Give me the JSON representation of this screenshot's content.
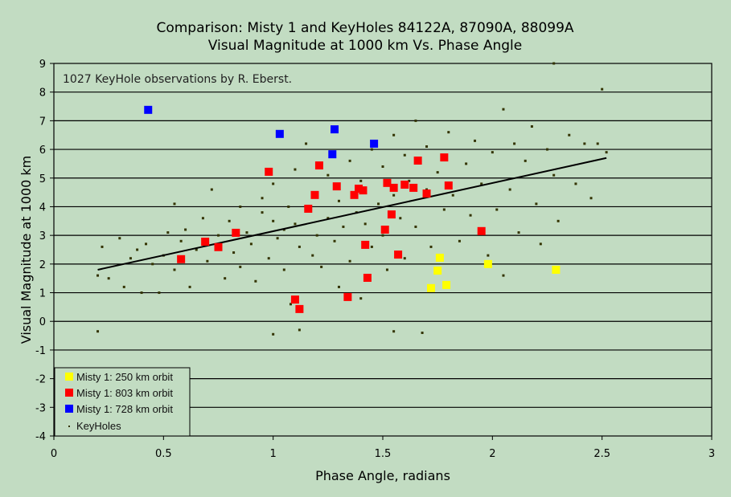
{
  "chart_data": {
    "type": "scatter",
    "title": [
      "Comparison: Misty 1 and KeyHoles 84122A, 87090A, 88099A",
      "Visual Magnitude at 1000 km Vs. Phase Angle"
    ],
    "xlabel": "Phase Angle, radians",
    "ylabel": "Visual Magnitude at 1000 km",
    "annotation": "1027 KeyHole observations by R. Eberst.",
    "xlim": [
      0,
      3
    ],
    "ylim": [
      -4,
      9
    ],
    "xticks": [
      0,
      0.5,
      1,
      1.5,
      2,
      2.5,
      3
    ],
    "xtick_labels": [
      "0",
      "0.5",
      "1",
      "1.5",
      "2",
      "2.5",
      "3"
    ],
    "yticks": [
      -4,
      -3,
      -2,
      -1,
      0,
      1,
      2,
      3,
      4,
      5,
      6,
      7,
      8,
      9
    ],
    "ytick_labels": [
      "-4",
      "-3",
      "-2",
      "-1",
      "0",
      "1",
      "2",
      "3",
      "4",
      "5",
      "6",
      "7",
      "8",
      "9"
    ],
    "grid": "horizontal",
    "legend_position": "bottom-left",
    "series": [
      {
        "name": "Misty 1: 250 km orbit",
        "color": "#ffff00",
        "marker": "square",
        "points": [
          [
            1.76,
            2.22
          ],
          [
            1.75,
            1.77
          ],
          [
            1.72,
            1.16
          ],
          [
            1.79,
            1.27
          ],
          [
            1.98,
            2.0
          ],
          [
            2.29,
            1.8
          ]
        ]
      },
      {
        "name": "Misty 1: 803 km orbit",
        "color": "#ff0000",
        "marker": "square",
        "points": [
          [
            0.58,
            2.17
          ],
          [
            0.69,
            2.78
          ],
          [
            0.75,
            2.59
          ],
          [
            0.83,
            3.09
          ],
          [
            0.98,
            5.22
          ],
          [
            1.16,
            3.93
          ],
          [
            1.19,
            4.41
          ],
          [
            1.21,
            5.44
          ],
          [
            1.29,
            4.71
          ],
          [
            1.37,
            4.41
          ],
          [
            1.39,
            4.63
          ],
          [
            1.41,
            4.57
          ],
          [
            1.42,
            2.67
          ],
          [
            1.43,
            1.52
          ],
          [
            1.34,
            0.85
          ],
          [
            1.1,
            0.76
          ],
          [
            1.12,
            0.43
          ],
          [
            1.52,
            4.83
          ],
          [
            1.55,
            4.66
          ],
          [
            1.6,
            4.77
          ],
          [
            1.64,
            4.66
          ],
          [
            1.7,
            4.46
          ],
          [
            1.66,
            5.61
          ],
          [
            1.78,
            5.72
          ],
          [
            1.8,
            4.74
          ],
          [
            1.54,
            3.73
          ],
          [
            1.51,
            3.2
          ],
          [
            1.57,
            2.33
          ],
          [
            1.95,
            3.15
          ]
        ]
      },
      {
        "name": "Misty 1: 728 km orbit",
        "color": "#0000ff",
        "marker": "square",
        "points": [
          [
            0.43,
            7.38
          ],
          [
            1.03,
            6.54
          ],
          [
            1.28,
            6.7
          ],
          [
            1.27,
            5.83
          ],
          [
            1.46,
            6.2
          ]
        ]
      },
      {
        "name": "KeyHoles",
        "color": "#333300",
        "marker": "dot",
        "points": [
          [
            0.2,
            -0.35
          ],
          [
            0.2,
            1.6
          ],
          [
            0.22,
            2.6
          ],
          [
            0.25,
            1.5
          ],
          [
            0.3,
            2.9
          ],
          [
            0.32,
            1.2
          ],
          [
            0.35,
            2.2
          ],
          [
            0.38,
            2.5
          ],
          [
            0.4,
            1.0
          ],
          [
            0.42,
            2.7
          ],
          [
            0.45,
            2.0
          ],
          [
            0.48,
            1.0
          ],
          [
            0.5,
            2.3
          ],
          [
            0.52,
            3.1
          ],
          [
            0.55,
            4.1
          ],
          [
            0.55,
            1.8
          ],
          [
            0.58,
            2.8
          ],
          [
            0.6,
            3.2
          ],
          [
            0.62,
            1.2
          ],
          [
            0.65,
            2.5
          ],
          [
            0.68,
            3.6
          ],
          [
            0.7,
            2.1
          ],
          [
            0.72,
            4.6
          ],
          [
            0.75,
            3.0
          ],
          [
            0.78,
            1.5
          ],
          [
            0.8,
            3.5
          ],
          [
            0.82,
            2.4
          ],
          [
            0.85,
            4.0
          ],
          [
            0.85,
            1.9
          ],
          [
            0.88,
            3.1
          ],
          [
            0.9,
            2.7
          ],
          [
            0.92,
            1.4
          ],
          [
            0.95,
            3.8
          ],
          [
            0.95,
            4.3
          ],
          [
            0.98,
            2.2
          ],
          [
            1.0,
            3.5
          ],
          [
            1.0,
            4.8
          ],
          [
            1.0,
            -0.45
          ],
          [
            1.02,
            2.9
          ],
          [
            1.05,
            3.2
          ],
          [
            1.05,
            1.8
          ],
          [
            1.07,
            4.0
          ],
          [
            1.08,
            0.6
          ],
          [
            1.1,
            3.4
          ],
          [
            1.1,
            5.3
          ],
          [
            1.12,
            2.6
          ],
          [
            1.12,
            -0.3
          ],
          [
            1.15,
            3.9
          ],
          [
            1.15,
            6.2
          ],
          [
            1.18,
            2.3
          ],
          [
            1.2,
            4.5
          ],
          [
            1.2,
            3.0
          ],
          [
            1.22,
            1.9
          ],
          [
            1.25,
            3.6
          ],
          [
            1.25,
            5.1
          ],
          [
            1.28,
            2.8
          ],
          [
            1.3,
            4.2
          ],
          [
            1.3,
            1.2
          ],
          [
            1.32,
            3.3
          ],
          [
            1.35,
            5.6
          ],
          [
            1.35,
            2.1
          ],
          [
            1.38,
            3.8
          ],
          [
            1.4,
            4.9
          ],
          [
            1.4,
            0.8
          ],
          [
            1.42,
            3.4
          ],
          [
            1.45,
            6.0
          ],
          [
            1.45,
            2.6
          ],
          [
            1.48,
            4.1
          ],
          [
            1.5,
            5.4
          ],
          [
            1.5,
            3.0
          ],
          [
            1.52,
            1.8
          ],
          [
            1.55,
            4.4
          ],
          [
            1.55,
            6.5
          ],
          [
            1.55,
            -0.35
          ],
          [
            1.58,
            3.6
          ],
          [
            1.6,
            5.8
          ],
          [
            1.6,
            2.2
          ],
          [
            1.62,
            4.9
          ],
          [
            1.65,
            7.0
          ],
          [
            1.65,
            3.3
          ],
          [
            1.68,
            -0.4
          ],
          [
            1.7,
            4.6
          ],
          [
            1.7,
            6.1
          ],
          [
            1.72,
            2.6
          ],
          [
            1.75,
            5.2
          ],
          [
            1.78,
            3.9
          ],
          [
            1.8,
            6.6
          ],
          [
            1.82,
            4.4
          ],
          [
            1.85,
            2.8
          ],
          [
            1.88,
            5.5
          ],
          [
            1.9,
            3.7
          ],
          [
            1.92,
            6.3
          ],
          [
            1.95,
            4.8
          ],
          [
            1.98,
            2.3
          ],
          [
            2.0,
            5.9
          ],
          [
            2.02,
            3.9
          ],
          [
            2.05,
            1.6
          ],
          [
            2.05,
            7.4
          ],
          [
            2.08,
            4.6
          ],
          [
            2.1,
            6.2
          ],
          [
            2.12,
            3.1
          ],
          [
            2.15,
            5.6
          ],
          [
            2.18,
            6.8
          ],
          [
            2.2,
            4.1
          ],
          [
            2.22,
            2.7
          ],
          [
            2.25,
            6.0
          ],
          [
            2.28,
            5.1
          ],
          [
            2.28,
            9.0
          ],
          [
            2.3,
            3.5
          ],
          [
            2.35,
            6.5
          ],
          [
            2.38,
            4.8
          ],
          [
            2.42,
            6.2
          ],
          [
            2.45,
            4.3
          ],
          [
            2.48,
            6.2
          ],
          [
            2.5,
            8.1
          ],
          [
            2.52,
            5.9
          ]
        ]
      },
      {
        "name": "Trend",
        "color": "#000000",
        "marker": "line",
        "points": [
          [
            0.2,
            1.8
          ],
          [
            2.52,
            5.7
          ]
        ]
      }
    ]
  }
}
